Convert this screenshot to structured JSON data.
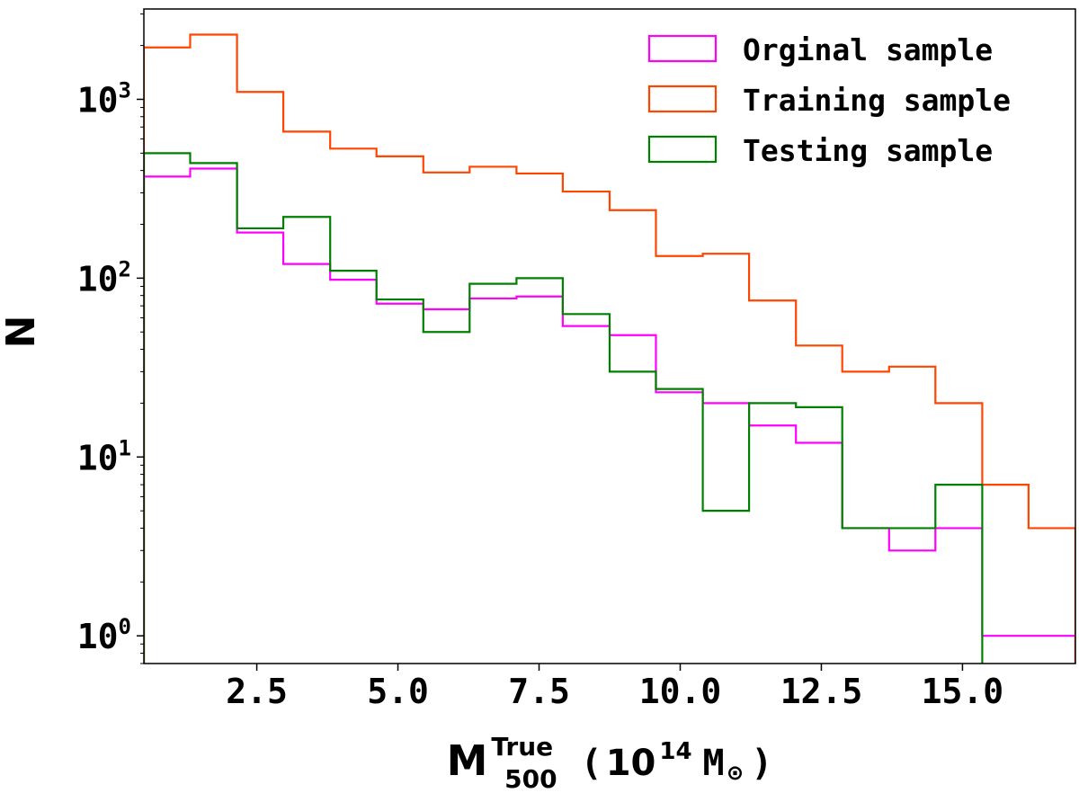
{
  "chart_data": {
    "type": "histogram",
    "xlabel": {
      "main": "M",
      "superscript": "True",
      "subscript": "500",
      "units_open": "(",
      "units_base": "10",
      "units_exp": "14",
      "units_sym": "M",
      "units_sun": "⊙",
      "units_close": ")"
    },
    "ylabel": "N",
    "yscale": "log",
    "xlim": [
      0.5,
      17.0
    ],
    "ylim": [
      0.7,
      3200
    ],
    "x_ticks": [
      {
        "value": 2.5,
        "label": "2.5"
      },
      {
        "value": 5.0,
        "label": "5.0"
      },
      {
        "value": 7.5,
        "label": "7.5"
      },
      {
        "value": 10.0,
        "label": "10.0"
      },
      {
        "value": 12.5,
        "label": "12.5"
      },
      {
        "value": 15.0,
        "label": "15.0"
      }
    ],
    "y_ticks": [
      {
        "value": 1,
        "base": "10",
        "exp": "0"
      },
      {
        "value": 10,
        "base": "10",
        "exp": "1"
      },
      {
        "value": 100,
        "base": "10",
        "exp": "2"
      },
      {
        "value": 1000,
        "base": "10",
        "exp": "3"
      }
    ],
    "bin_edges": [
      0.5,
      1.32,
      2.15,
      2.97,
      3.8,
      4.62,
      5.45,
      6.27,
      7.1,
      7.92,
      8.75,
      9.57,
      10.4,
      11.22,
      12.05,
      12.87,
      13.7,
      14.52,
      15.35,
      16.17,
      17.0
    ],
    "legend_position": "upper right",
    "series": [
      {
        "name": "Orginal sample",
        "color": "#ff00ff",
        "values": [
          370,
          410,
          180,
          120,
          98,
          72,
          67,
          77,
          79,
          54,
          48,
          23,
          20,
          15,
          12,
          4,
          3,
          4,
          1,
          1
        ]
      },
      {
        "name": "Training sample",
        "color": "#ff4500",
        "values": [
          1950,
          2300,
          1100,
          660,
          530,
          480,
          390,
          420,
          385,
          305,
          240,
          133,
          137,
          75,
          42,
          30,
          32,
          20,
          7,
          4
        ]
      },
      {
        "name": "Testing sample",
        "color": "#008000",
        "values": [
          500,
          440,
          190,
          220,
          110,
          76,
          50,
          93,
          100,
          63,
          30,
          24,
          5,
          20,
          19,
          4,
          4,
          7,
          0,
          0
        ]
      }
    ]
  }
}
